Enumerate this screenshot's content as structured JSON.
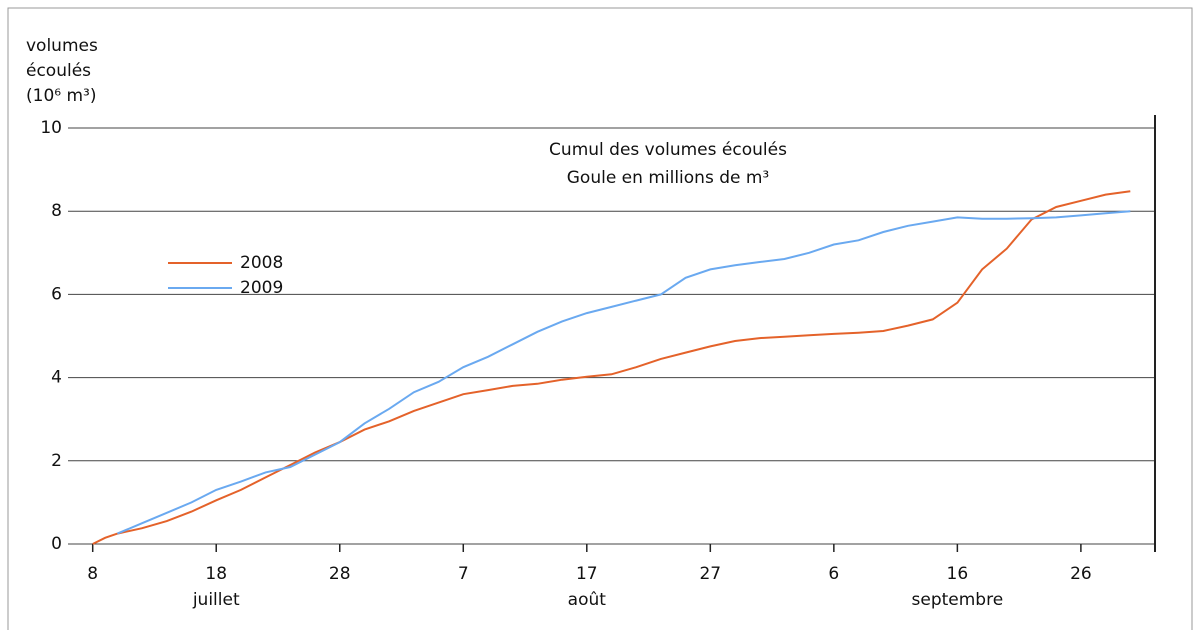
{
  "chart_data": {
    "type": "line",
    "title": [
      "Cumul des volumes écoulés",
      "Goule en millions de m³"
    ],
    "y_label": [
      "volumes",
      "écoulés",
      "(10⁶ m³)"
    ],
    "x": [
      8,
      9,
      10,
      12,
      14,
      16,
      18,
      20,
      22,
      24,
      26,
      28,
      30,
      32,
      34,
      36,
      38,
      40,
      42,
      44,
      46,
      48,
      50,
      52,
      54,
      56,
      58,
      60,
      62,
      64,
      66,
      68,
      70,
      72,
      74,
      76,
      78,
      80,
      82,
      84,
      86,
      88,
      90,
      92
    ],
    "series": [
      {
        "name": "2008",
        "color": "#e4622a",
        "values": [
          0,
          0.15,
          0.25,
          0.38,
          0.55,
          0.78,
          1.05,
          1.3,
          1.6,
          1.9,
          2.2,
          2.45,
          2.75,
          2.95,
          3.2,
          3.4,
          3.6,
          3.7,
          3.8,
          3.85,
          3.95,
          4.02,
          4.08,
          4.25,
          4.45,
          4.6,
          4.75,
          4.88,
          4.95,
          4.98,
          5.02,
          5.05,
          5.08,
          5.12,
          5.25,
          5.4,
          5.8,
          6.6,
          7.1,
          7.8,
          8.1,
          8.25,
          8.4,
          8.48
        ]
      },
      {
        "name": "2009",
        "color": "#6aa9f0",
        "values": [
          null,
          null,
          0.25,
          0.5,
          0.75,
          1.0,
          1.3,
          1.5,
          1.72,
          1.85,
          2.15,
          2.45,
          2.9,
          3.25,
          3.65,
          3.9,
          4.25,
          4.5,
          4.8,
          5.1,
          5.35,
          5.55,
          5.7,
          5.85,
          6.0,
          6.4,
          6.6,
          6.7,
          6.78,
          6.85,
          7.0,
          7.2,
          7.3,
          7.5,
          7.65,
          7.75,
          7.85,
          7.82,
          7.82,
          7.83,
          7.85,
          7.9,
          7.95,
          8.0
        ]
      }
    ],
    "xlim": [
      6,
      94
    ],
    "xticks": [
      8,
      18,
      28,
      {
        "value": 38,
        "label": "7"
      },
      {
        "value": 48,
        "label": "17"
      },
      {
        "value": 58,
        "label": "27"
      },
      {
        "value": 68,
        "label": "6"
      },
      {
        "value": 78,
        "label": "16"
      },
      {
        "value": 88,
        "label": "26"
      }
    ],
    "month_labels": [
      {
        "value": 18,
        "label": "juillet"
      },
      {
        "value": 48,
        "label": "août"
      },
      {
        "value": 78,
        "label": "septembre"
      }
    ],
    "ylim": [
      0,
      10
    ],
    "yticks": [
      0,
      2,
      4,
      6,
      8,
      10
    ],
    "grid": true
  }
}
